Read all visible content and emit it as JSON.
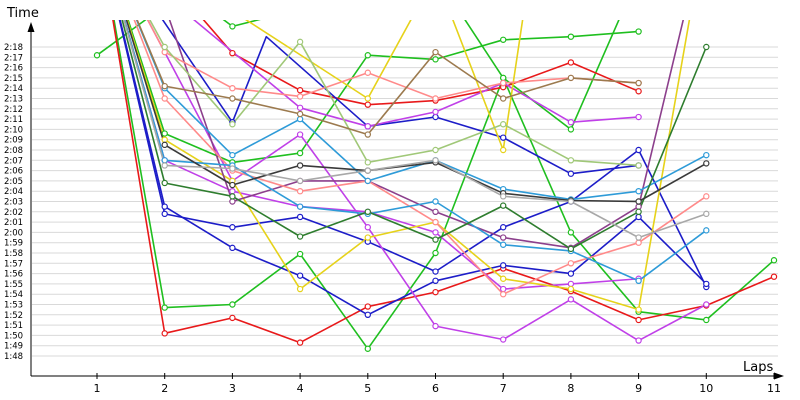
{
  "chart_data": {
    "type": "line",
    "title": "",
    "xlabel": "Laps",
    "ylabel": "Time",
    "x_ticks": [
      "1",
      "2",
      "3",
      "4",
      "5",
      "6",
      "7",
      "8",
      "9",
      "10",
      "11"
    ],
    "y_ticks": [
      "1:48",
      "1:49",
      "1:50",
      "1:51",
      "1:52",
      "1:53",
      "1:54",
      "1:55",
      "1:56",
      "1:57",
      "1:58",
      "1:59",
      "2:00",
      "2:01",
      "2:02",
      "2:03",
      "2:04",
      "2:05",
      "2:06",
      "2:07",
      "2:08",
      "2:09",
      "2:10",
      "2:11",
      "2:12",
      "2:13",
      "2:14",
      "2:15",
      "2:16",
      "2:17",
      "2:18"
    ],
    "ylim_seconds": [
      108,
      138
    ],
    "grid": true,
    "legend": "none",
    "series": [
      {
        "color": "#1fbf1f",
        "values": [
          [
            1,
            137.2
          ],
          [
            2,
            142
          ],
          [
            3,
            145
          ],
          [
            5,
            148.5
          ],
          [
            7,
            150
          ],
          [
            8,
            151.5
          ],
          [
            9,
            152.5
          ]
        ]
      },
      {
        "color": "#1fbf1f",
        "values": [
          [
            1,
            150
          ],
          [
            2,
            112.7
          ],
          [
            3,
            113
          ],
          [
            4,
            117.9
          ],
          [
            5,
            108.7
          ],
          [
            6,
            118
          ],
          [
            7,
            135
          ],
          [
            8,
            130
          ],
          [
            9,
            145
          ],
          [
            10,
            142
          ]
        ]
      },
      {
        "color": "#1fbf1f",
        "values": [
          [
            1,
            150
          ],
          [
            2,
            129.6
          ],
          [
            3,
            126.8
          ],
          [
            4,
            127.7
          ],
          [
            5,
            137.2
          ],
          [
            6,
            136.8
          ],
          [
            7,
            138.7
          ],
          [
            8,
            139
          ],
          [
            9,
            139.5
          ]
        ]
      },
      {
        "color": "#1fbf1f",
        "values": [
          [
            1,
            150
          ],
          [
            3,
            140
          ],
          [
            6,
            145
          ],
          [
            7,
            135
          ],
          [
            8,
            120
          ],
          [
            9,
            112.3
          ],
          [
            10,
            111.5
          ],
          [
            11,
            117.3
          ]
        ]
      },
      {
        "color": "#e8191a",
        "values": [
          [
            1,
            150
          ],
          [
            2,
            110.2
          ],
          [
            3,
            111.7
          ],
          [
            4,
            109.3
          ],
          [
            5,
            112.8
          ],
          [
            6,
            114.2
          ],
          [
            7,
            116.5
          ],
          [
            8,
            114.3
          ],
          [
            9,
            111.5
          ],
          [
            10,
            112.9
          ],
          [
            11,
            115.7
          ]
        ]
      },
      {
        "color": "#e8191a",
        "values": [
          [
            1,
            150
          ],
          [
            2,
            145
          ],
          [
            3,
            137.4
          ],
          [
            4,
            133.8
          ],
          [
            5,
            132.4
          ],
          [
            6,
            132.8
          ],
          [
            7,
            134.1
          ],
          [
            8,
            136.5
          ],
          [
            9,
            133.7
          ]
        ]
      },
      {
        "color": "#1d1dc8",
        "values": [
          [
            1,
            150
          ],
          [
            2,
            121.8
          ],
          [
            3,
            120.5
          ],
          [
            4,
            121.5
          ],
          [
            5,
            119.1
          ],
          [
            6,
            116.2
          ],
          [
            7,
            120.5
          ],
          [
            8,
            123
          ],
          [
            9,
            128
          ],
          [
            10,
            114.7
          ]
        ]
      },
      {
        "color": "#1d1dc8",
        "values": [
          [
            1,
            150
          ],
          [
            2,
            122.5
          ],
          [
            3,
            118.5
          ],
          [
            4,
            115.8
          ],
          [
            5,
            112
          ],
          [
            6,
            115.3
          ],
          [
            7,
            116.8
          ],
          [
            8,
            116
          ],
          [
            9,
            121.5
          ],
          [
            10,
            115
          ]
        ]
      },
      {
        "color": "#1d1dc8",
        "values": [
          [
            1,
            150
          ],
          [
            3,
            130.7
          ],
          [
            3.5,
            139
          ],
          [
            5,
            130.3
          ],
          [
            6,
            131.2
          ],
          [
            7,
            129.2
          ],
          [
            8,
            125.7
          ],
          [
            9,
            126.5
          ]
        ]
      },
      {
        "color": "#c040e8",
        "values": [
          [
            1,
            150
          ],
          [
            3,
            125
          ],
          [
            4,
            129.5
          ],
          [
            5,
            120.5
          ],
          [
            6,
            110.9
          ],
          [
            7,
            109.6
          ],
          [
            8,
            113.5
          ],
          [
            9,
            109.5
          ],
          [
            10,
            113
          ]
        ]
      },
      {
        "color": "#c040e8",
        "values": [
          [
            1,
            150
          ],
          [
            2,
            143
          ],
          [
            4,
            132.1
          ],
          [
            5,
            130.3
          ],
          [
            6,
            131.7
          ],
          [
            7,
            134.5
          ],
          [
            8,
            130.7
          ],
          [
            9,
            131.2
          ]
        ]
      },
      {
        "color": "#c040e8",
        "values": [
          [
            1,
            150
          ],
          [
            2,
            127
          ],
          [
            3,
            124
          ],
          [
            4,
            122.5
          ],
          [
            5,
            122
          ],
          [
            6,
            120
          ],
          [
            7,
            114.5
          ],
          [
            8,
            115
          ],
          [
            9,
            115.5
          ]
        ]
      },
      {
        "color": "#e6d21a",
        "values": [
          [
            1,
            150
          ],
          [
            2,
            129
          ],
          [
            3,
            125
          ],
          [
            4,
            114.5
          ],
          [
            5,
            119.5
          ],
          [
            6,
            121
          ],
          [
            7,
            115.5
          ],
          [
            8,
            114.5
          ],
          [
            9,
            112.5
          ],
          [
            10,
            150
          ]
        ]
      },
      {
        "color": "#e6d21a",
        "values": [
          [
            1,
            150
          ],
          [
            5,
            133
          ],
          [
            6,
            145
          ],
          [
            7,
            128
          ],
          [
            7.5,
            150
          ]
        ]
      },
      {
        "color": "#8c3f8c",
        "values": [
          [
            1,
            150
          ],
          [
            2,
            142
          ],
          [
            3,
            123
          ],
          [
            4,
            125
          ],
          [
            5,
            125
          ],
          [
            6,
            122
          ],
          [
            7,
            119.5
          ],
          [
            8,
            118.5
          ],
          [
            9,
            122.5
          ],
          [
            10,
            150
          ]
        ]
      },
      {
        "color": "#ff8a8a",
        "values": [
          [
            1,
            150
          ],
          [
            2,
            137.5
          ],
          [
            3,
            134
          ],
          [
            4,
            133.2
          ],
          [
            5,
            135.5
          ],
          [
            6,
            133
          ],
          [
            7,
            134.5
          ],
          [
            8,
            135
          ],
          [
            9,
            134.5
          ]
        ]
      },
      {
        "color": "#ff8a8a",
        "values": [
          [
            1,
            150
          ],
          [
            2,
            133
          ],
          [
            3,
            126
          ],
          [
            4,
            124
          ],
          [
            5,
            125
          ],
          [
            6,
            121
          ],
          [
            7,
            114
          ],
          [
            8,
            117
          ],
          [
            9,
            119
          ],
          [
            10,
            123.5
          ]
        ]
      },
      {
        "color": "#2e9bd8",
        "values": [
          [
            1,
            150
          ],
          [
            2,
            127
          ],
          [
            3,
            126.5
          ],
          [
            4,
            122.5
          ],
          [
            5,
            121.8
          ],
          [
            6,
            123
          ],
          [
            7,
            118.8
          ],
          [
            8,
            118.2
          ],
          [
            9,
            115.3
          ],
          [
            10,
            120.2
          ]
        ]
      },
      {
        "color": "#2e9bd8",
        "values": [
          [
            1,
            150
          ],
          [
            2,
            134
          ],
          [
            3,
            127.5
          ],
          [
            4,
            131
          ],
          [
            5,
            125
          ],
          [
            6,
            127
          ],
          [
            7,
            124.2
          ],
          [
            8,
            123.2
          ],
          [
            9,
            124
          ],
          [
            10,
            127.5
          ]
        ]
      },
      {
        "color": "#a0c878",
        "values": [
          [
            1,
            150
          ],
          [
            2,
            138
          ],
          [
            3,
            130.5
          ],
          [
            4,
            138.5
          ],
          [
            5,
            126.8
          ],
          [
            6,
            128
          ],
          [
            7,
            130.5
          ],
          [
            8,
            127
          ],
          [
            9,
            126.5
          ]
        ]
      },
      {
        "color": "#9c7a4e",
        "values": [
          [
            1,
            150
          ],
          [
            2,
            134.2
          ],
          [
            3,
            133
          ],
          [
            4,
            131.5
          ],
          [
            5,
            129.5
          ],
          [
            6,
            137.5
          ],
          [
            7,
            133
          ],
          [
            8,
            135
          ],
          [
            9,
            134.5
          ]
        ]
      },
      {
        "color": "#2e7d2e",
        "values": [
          [
            1,
            150
          ],
          [
            2,
            124.8
          ],
          [
            3,
            123.5
          ],
          [
            4,
            119.6
          ],
          [
            5,
            122
          ],
          [
            6,
            119.3
          ],
          [
            7,
            122.6
          ],
          [
            8,
            118.4
          ],
          [
            9,
            122
          ],
          [
            10,
            138
          ]
        ]
      },
      {
        "color": "#3a3a3a",
        "values": [
          [
            1,
            150
          ],
          [
            2,
            128.5
          ],
          [
            3,
            124.6
          ],
          [
            4,
            126.5
          ],
          [
            5,
            126
          ],
          [
            6,
            126.8
          ],
          [
            7,
            123.8
          ],
          [
            8,
            123.1
          ],
          [
            9,
            123
          ],
          [
            10,
            126.7
          ]
        ]
      },
      {
        "color": "#a8a8a8",
        "values": [
          [
            1,
            150
          ],
          [
            2,
            126.5
          ],
          [
            3,
            126.2
          ],
          [
            4,
            125
          ],
          [
            5,
            126
          ],
          [
            6,
            127
          ],
          [
            7,
            123.5
          ],
          [
            8,
            123
          ],
          [
            9,
            119.5
          ],
          [
            10,
            121.8
          ]
        ]
      }
    ]
  }
}
